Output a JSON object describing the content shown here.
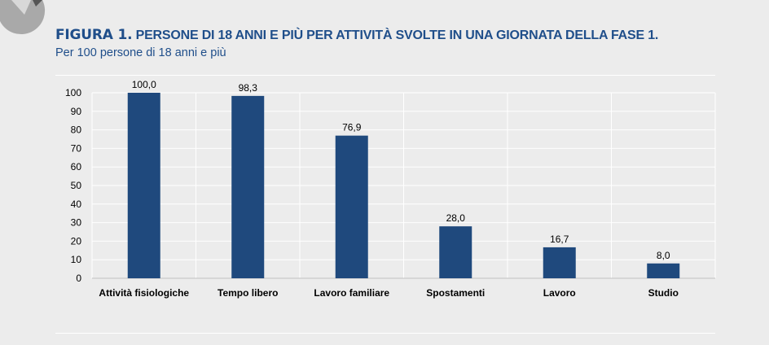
{
  "figure": {
    "label": "FIGURA 1.",
    "title": "PERSONE DI 18 ANNI E PIÙ PER ATTIVITÀ SVOLTE IN UNA GIORNATA DELLA FASE 1.",
    "subtitle": "Per 100 persone di 18 anni e più"
  },
  "colors": {
    "bar": "#1f497d",
    "title": "#1f4e8a",
    "background": "#ececec",
    "grid": "#ffffff"
  },
  "chart_data": {
    "type": "bar",
    "categories": [
      "Attività fisiologiche",
      "Tempo libero",
      "Lavoro familiare",
      "Spostamenti",
      "Lavoro",
      "Studio"
    ],
    "values": [
      100.0,
      98.3,
      76.9,
      28.0,
      16.7,
      8.0
    ],
    "data_labels": [
      "100,0",
      "98,3",
      "76,9",
      "28,0",
      "16,7",
      "8,0"
    ],
    "y_ticks": [
      0,
      10,
      20,
      30,
      40,
      50,
      60,
      70,
      80,
      90,
      100
    ],
    "ylim": [
      0,
      100
    ],
    "grid": true,
    "legend": "none"
  }
}
